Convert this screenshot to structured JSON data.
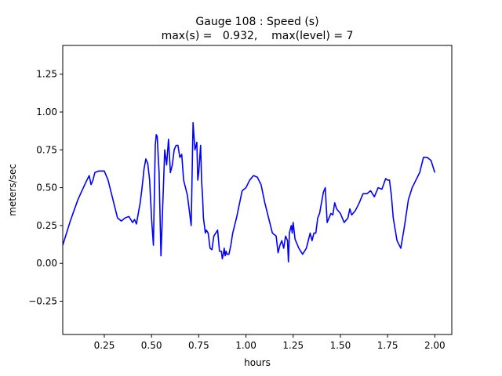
{
  "chart_data": {
    "type": "line",
    "title": "Gauge 108 : Speed (s)",
    "subtitle": "max(s) =   0.932,    max(level) = 7",
    "xlabel": "hours",
    "ylabel": "meters/sec",
    "xlim": [
      0.03,
      2.09
    ],
    "ylim": [
      -0.47,
      1.44
    ],
    "xticks": [
      0.25,
      0.5,
      0.75,
      1.0,
      1.25,
      1.5,
      1.75,
      2.0
    ],
    "xtick_labels": [
      "0.25",
      "0.50",
      "0.75",
      "1.00",
      "1.25",
      "1.50",
      "1.75",
      "2.00"
    ],
    "yticks": [
      -0.25,
      0.0,
      0.25,
      0.5,
      0.75,
      1.0,
      1.25
    ],
    "ytick_labels": [
      "−0.25",
      "0.00",
      "0.25",
      "0.50",
      "0.75",
      "1.00",
      "1.25"
    ],
    "grid": false,
    "series": [
      {
        "color": "#0000ff",
        "x": [
          0.03,
          0.07,
          0.11,
          0.15,
          0.17,
          0.18,
          0.19,
          0.2,
          0.22,
          0.25,
          0.27,
          0.29,
          0.32,
          0.34,
          0.36,
          0.38,
          0.4,
          0.41,
          0.42,
          0.43,
          0.44,
          0.45,
          0.46,
          0.47,
          0.48,
          0.49,
          0.5,
          0.51,
          0.52,
          0.525,
          0.53,
          0.54,
          0.55,
          0.56,
          0.57,
          0.58,
          0.59,
          0.6,
          0.61,
          0.62,
          0.63,
          0.64,
          0.65,
          0.66,
          0.67,
          0.68,
          0.69,
          0.7,
          0.71,
          0.72,
          0.73,
          0.74,
          0.745,
          0.75,
          0.76,
          0.765,
          0.77,
          0.775,
          0.78,
          0.785,
          0.79,
          0.8,
          0.81,
          0.82,
          0.83,
          0.84,
          0.85,
          0.86,
          0.87,
          0.875,
          0.88,
          0.885,
          0.89,
          0.895,
          0.9,
          0.91,
          0.92,
          0.93,
          0.95,
          0.98,
          1.0,
          1.02,
          1.04,
          1.06,
          1.08,
          1.1,
          1.12,
          1.14,
          1.16,
          1.17,
          1.18,
          1.19,
          1.2,
          1.21,
          1.22,
          1.225,
          1.23,
          1.24,
          1.245,
          1.25,
          1.26,
          1.28,
          1.3,
          1.32,
          1.34,
          1.35,
          1.36,
          1.37,
          1.38,
          1.39,
          1.4,
          1.41,
          1.42,
          1.43,
          1.44,
          1.45,
          1.46,
          1.47,
          1.48,
          1.5,
          1.52,
          1.54,
          1.55,
          1.56,
          1.58,
          1.6,
          1.62,
          1.64,
          1.66,
          1.68,
          1.7,
          1.72,
          1.74,
          1.75,
          1.76,
          1.77,
          1.78,
          1.8,
          1.82,
          1.84,
          1.86,
          1.88,
          1.9,
          1.92,
          1.94,
          1.96,
          1.98,
          2.0
        ],
        "y": [
          0.12,
          0.28,
          0.42,
          0.53,
          0.58,
          0.52,
          0.55,
          0.6,
          0.61,
          0.61,
          0.55,
          0.45,
          0.3,
          0.28,
          0.3,
          0.31,
          0.27,
          0.29,
          0.26,
          0.33,
          0.4,
          0.5,
          0.62,
          0.69,
          0.66,
          0.55,
          0.3,
          0.12,
          0.78,
          0.85,
          0.84,
          0.6,
          0.05,
          0.4,
          0.75,
          0.65,
          0.82,
          0.6,
          0.65,
          0.75,
          0.78,
          0.78,
          0.7,
          0.72,
          0.55,
          0.5,
          0.45,
          0.35,
          0.25,
          0.93,
          0.75,
          0.8,
          0.55,
          0.6,
          0.78,
          0.55,
          0.45,
          0.3,
          0.25,
          0.2,
          0.22,
          0.2,
          0.1,
          0.09,
          0.18,
          0.2,
          0.22,
          0.08,
          0.08,
          0.03,
          0.06,
          0.1,
          0.05,
          0.08,
          0.06,
          0.06,
          0.12,
          0.2,
          0.3,
          0.48,
          0.5,
          0.55,
          0.58,
          0.57,
          0.52,
          0.4,
          0.3,
          0.2,
          0.18,
          0.07,
          0.12,
          0.15,
          0.1,
          0.18,
          0.15,
          0.01,
          0.2,
          0.25,
          0.2,
          0.27,
          0.16,
          0.1,
          0.06,
          0.1,
          0.2,
          0.15,
          0.2,
          0.2,
          0.3,
          0.33,
          0.4,
          0.47,
          0.5,
          0.27,
          0.3,
          0.33,
          0.32,
          0.4,
          0.36,
          0.33,
          0.27,
          0.3,
          0.36,
          0.32,
          0.35,
          0.4,
          0.46,
          0.46,
          0.48,
          0.44,
          0.5,
          0.49,
          0.56,
          0.55,
          0.55,
          0.45,
          0.3,
          0.15,
          0.1,
          0.25,
          0.42,
          0.5,
          0.55,
          0.6,
          0.7,
          0.7,
          0.68,
          0.6
        ]
      }
    ]
  }
}
